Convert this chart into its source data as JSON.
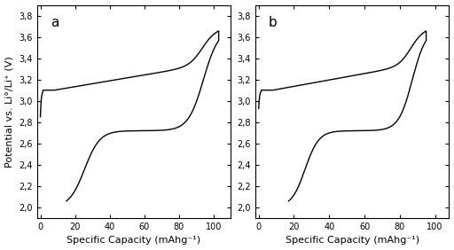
{
  "ylabel": "Potential vs. Li°/Li⁺ (V)",
  "xlabel": "Specific Capacity (mAhg⁻¹)",
  "panel_a_label": "a",
  "panel_b_label": "b",
  "ylim": [
    1.9,
    3.9
  ],
  "xlim_a": [
    -2,
    110
  ],
  "xlim_b": [
    -2,
    108
  ],
  "yticks": [
    2.0,
    2.2,
    2.4,
    2.6,
    2.8,
    3.0,
    3.2,
    3.4,
    3.6,
    3.8
  ],
  "xticks_a": [
    0,
    20,
    40,
    60,
    80,
    100
  ],
  "xticks_b": [
    0,
    20,
    40,
    60,
    80,
    100
  ],
  "line_color": "#000000",
  "line_width": 1.0,
  "bg_color": "#ffffff",
  "tick_label_fontsize": 7,
  "axis_label_fontsize": 8,
  "panel_label_fontsize": 11
}
